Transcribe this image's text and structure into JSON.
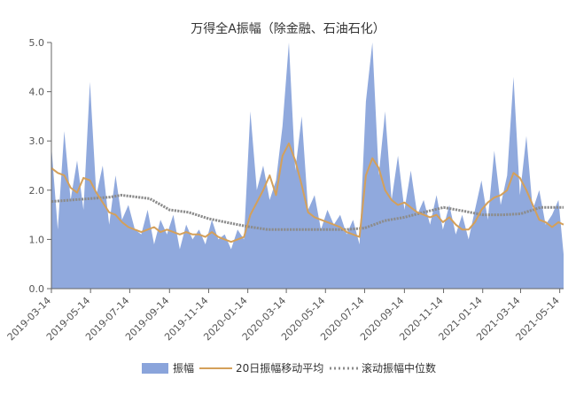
{
  "chart_data": {
    "type": "area",
    "title": "万得全A振幅（除金融、石油石化）",
    "ylim": [
      0,
      5
    ],
    "yticks": [
      "0.0",
      "1.0",
      "2.0",
      "3.0",
      "4.0",
      "5.0"
    ],
    "x_start": "2019-03-14",
    "x_end": "2021-05-20",
    "xticks": [
      "2019-03-14",
      "2019-05-14",
      "2019-07-14",
      "2019-09-14",
      "2019-11-14",
      "2020-01-14",
      "2020-03-14",
      "2020-05-14",
      "2020-07-14",
      "2020-09-14",
      "2020-11-14",
      "2021-01-14",
      "2021-03-14",
      "2021-05-14"
    ],
    "grid": false,
    "legend_position": "bottom",
    "colors": {
      "amplitude": "#8aa4db",
      "ma20": "#d4a05a",
      "median": "#8c8c8c"
    },
    "legend": {
      "amplitude": "振幅",
      "ma20": "20日振幅移动平均",
      "median": "滚动振幅中位数"
    },
    "series": [
      {
        "name": "振幅",
        "key": "amplitude",
        "x": [
          "2019-03-14",
          "2019-03-24",
          "2019-04-03",
          "2019-04-13",
          "2019-04-23",
          "2019-05-03",
          "2019-05-13",
          "2019-05-23",
          "2019-06-02",
          "2019-06-12",
          "2019-06-22",
          "2019-07-02",
          "2019-07-12",
          "2019-07-22",
          "2019-08-01",
          "2019-08-11",
          "2019-08-21",
          "2019-08-31",
          "2019-09-10",
          "2019-09-20",
          "2019-09-30",
          "2019-10-10",
          "2019-10-20",
          "2019-10-30",
          "2019-11-09",
          "2019-11-19",
          "2019-11-29",
          "2019-12-09",
          "2019-12-19",
          "2019-12-29",
          "2020-01-08",
          "2020-01-18",
          "2020-01-28",
          "2020-02-07",
          "2020-02-17",
          "2020-02-27",
          "2020-03-08",
          "2020-03-18",
          "2020-03-28",
          "2020-04-07",
          "2020-04-17",
          "2020-04-27",
          "2020-05-07",
          "2020-05-17",
          "2020-05-27",
          "2020-06-06",
          "2020-06-16",
          "2020-06-26",
          "2020-07-06",
          "2020-07-16",
          "2020-07-26",
          "2020-08-05",
          "2020-08-15",
          "2020-08-25",
          "2020-09-04",
          "2020-09-14",
          "2020-09-24",
          "2020-10-04",
          "2020-10-14",
          "2020-10-24",
          "2020-11-03",
          "2020-11-13",
          "2020-11-23",
          "2020-12-03",
          "2020-12-13",
          "2020-12-23",
          "2021-01-02",
          "2021-01-12",
          "2021-01-22",
          "2021-02-01",
          "2021-02-11",
          "2021-02-21",
          "2021-03-03",
          "2021-03-13",
          "2021-03-23",
          "2021-04-02",
          "2021-04-12",
          "2021-04-22",
          "2021-05-02",
          "2021-05-12",
          "2021-05-20"
        ],
        "values": [
          2.9,
          1.2,
          3.2,
          1.8,
          2.6,
          1.6,
          4.2,
          1.9,
          2.5,
          1.3,
          2.3,
          1.4,
          1.7,
          1.2,
          1.1,
          1.6,
          0.9,
          1.4,
          1.1,
          1.5,
          0.8,
          1.3,
          1.0,
          1.2,
          0.9,
          1.4,
          1.0,
          1.1,
          0.8,
          1.2,
          1.0,
          3.6,
          2.0,
          2.5,
          1.8,
          2.2,
          3.3,
          5.0,
          2.4,
          3.5,
          1.6,
          1.9,
          1.2,
          1.6,
          1.3,
          1.5,
          1.1,
          1.4,
          0.9,
          3.8,
          5.0,
          2.3,
          3.6,
          1.8,
          2.7,
          1.6,
          2.4,
          1.5,
          1.8,
          1.3,
          1.9,
          1.2,
          1.7,
          1.1,
          1.5,
          1.0,
          1.6,
          2.2,
          1.4,
          2.8,
          1.7,
          2.3,
          4.3,
          1.9,
          3.1,
          1.6,
          2.0,
          1.3,
          1.5,
          1.8,
          0.7
        ]
      },
      {
        "name": "20日振幅移动平均",
        "key": "ma20",
        "x": [
          "2019-03-14",
          "2019-03-24",
          "2019-04-03",
          "2019-04-13",
          "2019-04-23",
          "2019-05-03",
          "2019-05-13",
          "2019-05-23",
          "2019-06-02",
          "2019-06-12",
          "2019-06-22",
          "2019-07-02",
          "2019-07-12",
          "2019-07-22",
          "2019-08-01",
          "2019-08-11",
          "2019-08-21",
          "2019-08-31",
          "2019-09-10",
          "2019-09-20",
          "2019-09-30",
          "2019-10-10",
          "2019-10-20",
          "2019-10-30",
          "2019-11-09",
          "2019-11-19",
          "2019-11-29",
          "2019-12-09",
          "2019-12-19",
          "2019-12-29",
          "2020-01-08",
          "2020-01-18",
          "2020-01-28",
          "2020-02-07",
          "2020-02-17",
          "2020-02-27",
          "2020-03-08",
          "2020-03-18",
          "2020-03-28",
          "2020-04-07",
          "2020-04-17",
          "2020-04-27",
          "2020-05-07",
          "2020-05-17",
          "2020-05-27",
          "2020-06-06",
          "2020-06-16",
          "2020-06-26",
          "2020-07-06",
          "2020-07-16",
          "2020-07-26",
          "2020-08-05",
          "2020-08-15",
          "2020-08-25",
          "2020-09-04",
          "2020-09-14",
          "2020-09-24",
          "2020-10-04",
          "2020-10-14",
          "2020-10-24",
          "2020-11-03",
          "2020-11-13",
          "2020-11-23",
          "2020-12-03",
          "2020-12-13",
          "2020-12-23",
          "2021-01-02",
          "2021-01-12",
          "2021-01-22",
          "2021-02-01",
          "2021-02-11",
          "2021-02-21",
          "2021-03-03",
          "2021-03-13",
          "2021-03-23",
          "2021-04-02",
          "2021-04-12",
          "2021-04-22",
          "2021-05-02",
          "2021-05-12",
          "2021-05-20"
        ],
        "values": [
          2.45,
          2.35,
          2.3,
          2.05,
          1.95,
          2.25,
          2.2,
          1.95,
          1.75,
          1.55,
          1.5,
          1.35,
          1.25,
          1.2,
          1.15,
          1.2,
          1.25,
          1.15,
          1.2,
          1.15,
          1.1,
          1.15,
          1.1,
          1.1,
          1.05,
          1.15,
          1.05,
          1.0,
          0.95,
          1.0,
          1.05,
          1.5,
          1.75,
          2.0,
          2.3,
          1.9,
          2.7,
          2.95,
          2.6,
          2.1,
          1.55,
          1.45,
          1.4,
          1.35,
          1.3,
          1.25,
          1.15,
          1.1,
          1.05,
          2.3,
          2.65,
          2.45,
          2.0,
          1.8,
          1.7,
          1.75,
          1.65,
          1.55,
          1.5,
          1.45,
          1.5,
          1.35,
          1.45,
          1.3,
          1.2,
          1.2,
          1.35,
          1.6,
          1.75,
          1.85,
          1.9,
          2.0,
          2.35,
          2.25,
          2.0,
          1.7,
          1.4,
          1.35,
          1.25,
          1.35,
          1.3
        ]
      },
      {
        "name": "滚动振幅中位数",
        "key": "median",
        "x": [
          "2019-03-14",
          "2019-04-14",
          "2019-05-14",
          "2019-06-14",
          "2019-07-01",
          "2019-08-14",
          "2019-09-01",
          "2019-09-14",
          "2019-10-14",
          "2019-11-14",
          "2019-12-14",
          "2020-01-14",
          "2020-02-14",
          "2020-03-14",
          "2020-04-14",
          "2020-05-14",
          "2020-06-14",
          "2020-07-14",
          "2020-08-14",
          "2020-09-14",
          "2020-10-14",
          "2020-11-14",
          "2020-12-14",
          "2021-01-14",
          "2021-02-14",
          "2021-03-14",
          "2021-04-14",
          "2021-05-20"
        ],
        "values": [
          1.77,
          1.8,
          1.83,
          1.86,
          1.9,
          1.83,
          1.7,
          1.6,
          1.55,
          1.42,
          1.34,
          1.26,
          1.2,
          1.2,
          1.2,
          1.2,
          1.2,
          1.23,
          1.38,
          1.45,
          1.55,
          1.65,
          1.58,
          1.5,
          1.5,
          1.52,
          1.65,
          1.65
        ]
      }
    ]
  }
}
